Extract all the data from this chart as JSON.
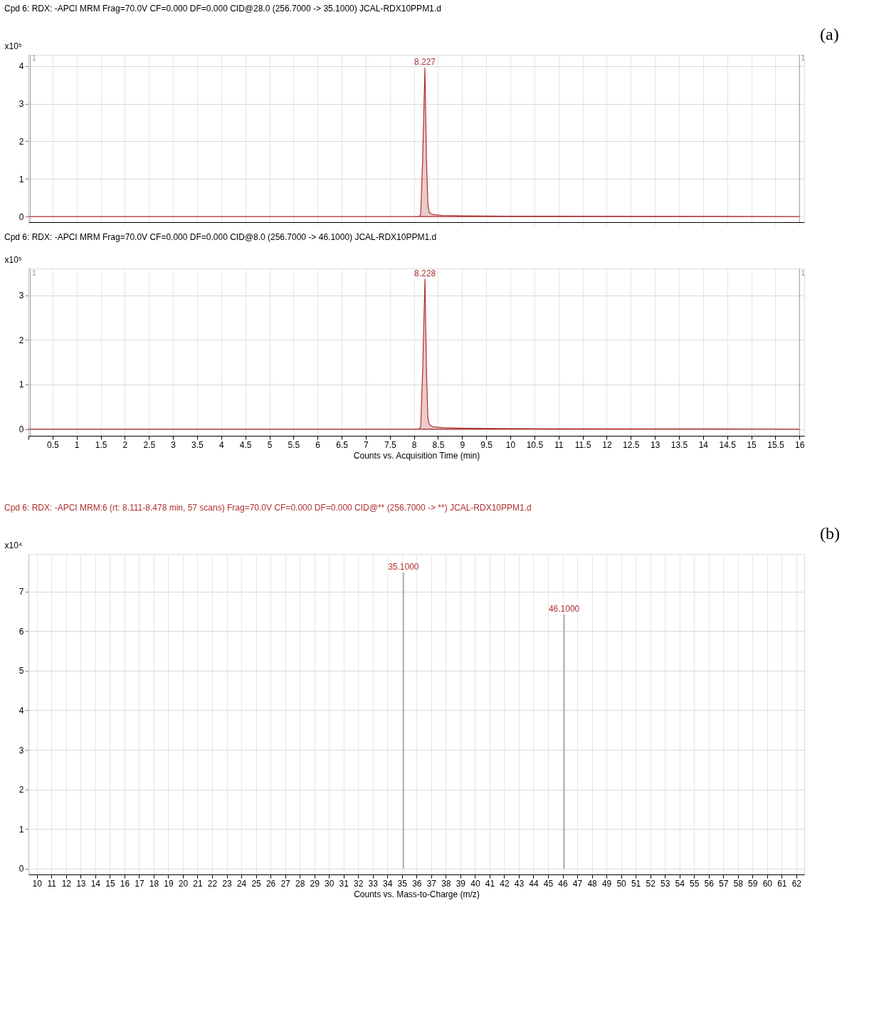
{
  "chart_data": [
    {
      "type": "area",
      "title": "Cpd 6: RDX: -APCI MRM Frag=70.0V CF=0.000 DF=0.000 CID@28.0 (256.7000 -> 35.1000) JCAL-RDX10PPM1.d",
      "ylabel": "x10⁵",
      "xlim": [
        0,
        16.1
      ],
      "ylim": [
        -0.15,
        4.3
      ],
      "yticks": [
        0,
        1,
        2,
        3,
        4
      ],
      "grid": true,
      "tick_labels": "y",
      "xticks": [
        {
          "value": 0,
          "label": null
        },
        0.5,
        1,
        1.5,
        2,
        2.5,
        3,
        3.5,
        4,
        4.5,
        5,
        5.5,
        6,
        6.5,
        7,
        7.5,
        8,
        8.5,
        9,
        9.5,
        10,
        10.5,
        11,
        11.5,
        12,
        12.5,
        13,
        13.5,
        14,
        14.5,
        15,
        15.5,
        16
      ],
      "series": [
        {
          "color": "#b03030",
          "x": [
            0,
            8.1,
            8.14,
            8.18,
            8.227,
            8.26,
            8.29,
            8.32,
            8.4,
            8.6,
            9.0,
            10,
            16
          ],
          "values": [
            0,
            0,
            0.05,
            1.5,
            3.95,
            1.5,
            0.3,
            0.1,
            0.05,
            0.03,
            0.02,
            0.01,
            0
          ]
        }
      ],
      "ref_lines": [
        {
          "axis": "x",
          "value": 0.04,
          "color": "#999999"
        },
        {
          "axis": "x",
          "value": 16,
          "color": "#999999"
        }
      ],
      "annotations": [
        {
          "text": "8.227",
          "x": 8.227,
          "y": 3.95
        },
        {
          "text": "1",
          "x": 0.04,
          "y": 4.1
        },
        {
          "text": "1",
          "x": 16,
          "y": 4.1
        },
        "(a)"
      ]
    },
    {
      "type": "area",
      "title": "Cpd 6: RDX: -APCI MRM Frag=70.0V CF=0.000 DF=0.000 CID@8.0 (256.7000 -> 46.1000) JCAL-RDX10PPM1.d",
      "ylabel": "x10⁵",
      "xlabel": "Counts vs. Acquisition Time (min)",
      "xlim": [
        0,
        16.1
      ],
      "ylim": [
        -0.15,
        3.6
      ],
      "yticks": [
        0,
        1,
        2,
        3
      ],
      "grid": true,
      "xticks": [
        {
          "value": 0,
          "label": null
        },
        0.5,
        1,
        1.5,
        2,
        2.5,
        3,
        3.5,
        4,
        4.5,
        5,
        5.5,
        6,
        6.5,
        7,
        7.5,
        8,
        8.5,
        9,
        9.5,
        10,
        10.5,
        11,
        11.5,
        12,
        12.5,
        13,
        13.5,
        14,
        14.5,
        15,
        15.5,
        16
      ],
      "series": [
        {
          "color": "#b03030",
          "x": [
            0,
            8.1,
            8.14,
            8.18,
            8.228,
            8.26,
            8.29,
            8.32,
            8.4,
            8.6,
            9.0,
            10,
            16
          ],
          "values": [
            0,
            0,
            0.05,
            1.3,
            3.36,
            1.3,
            0.25,
            0.1,
            0.05,
            0.03,
            0.02,
            0.01,
            0
          ]
        }
      ],
      "ref_lines": [
        {
          "axis": "x",
          "value": 0.04,
          "color": "#999999"
        },
        {
          "axis": "x",
          "value": 16,
          "color": "#999999"
        }
      ],
      "annotations": [
        {
          "text": "8.228",
          "x": 8.228,
          "y": 3.36
        },
        {
          "text": "1",
          "x": 0.04,
          "y": 3.4
        },
        {
          "text": "1",
          "x": 16,
          "y": 3.4
        }
      ]
    },
    {
      "type": "bar",
      "title": "Cpd 6: RDX: -APCI MRM:6 (rt: 8.111-8.478 min, 57 scans) Frag=70.0V CF=0.000 DF=0.000 CID@** (256.7000 -> **) JCAL-RDX10PPM1.d",
      "ylabel": "x10⁴",
      "xlabel": "Counts vs. Mass-to-Charge (m/z)",
      "xlim": [
        9.67,
        62.3
      ],
      "ylim": [
        -0.15,
        7.95
      ],
      "yticks": [
        0,
        1,
        2,
        3,
        4,
        5,
        6,
        7
      ],
      "grid": true,
      "xticks": [
        10,
        11,
        12,
        13,
        14,
        15,
        16,
        17,
        18,
        19,
        20,
        21,
        22,
        23,
        24,
        25,
        26,
        27,
        28,
        29,
        30,
        31,
        32,
        33,
        34,
        35,
        36,
        37,
        38,
        39,
        40,
        41,
        42,
        43,
        44,
        45,
        46,
        47,
        48,
        49,
        50,
        51,
        52,
        53,
        54,
        55,
        56,
        57,
        58,
        59,
        60,
        61,
        62
      ],
      "series": [
        {
          "color": "#888888",
          "x": [
            35.1,
            46.1
          ],
          "values": [
            7.48,
            6.42
          ]
        }
      ],
      "annotations": [
        {
          "text": "35.1000",
          "x": 35.1,
          "y": 7.48
        },
        {
          "text": "46.1000",
          "x": 46.1,
          "y": 6.42
        },
        "(b)"
      ]
    }
  ]
}
